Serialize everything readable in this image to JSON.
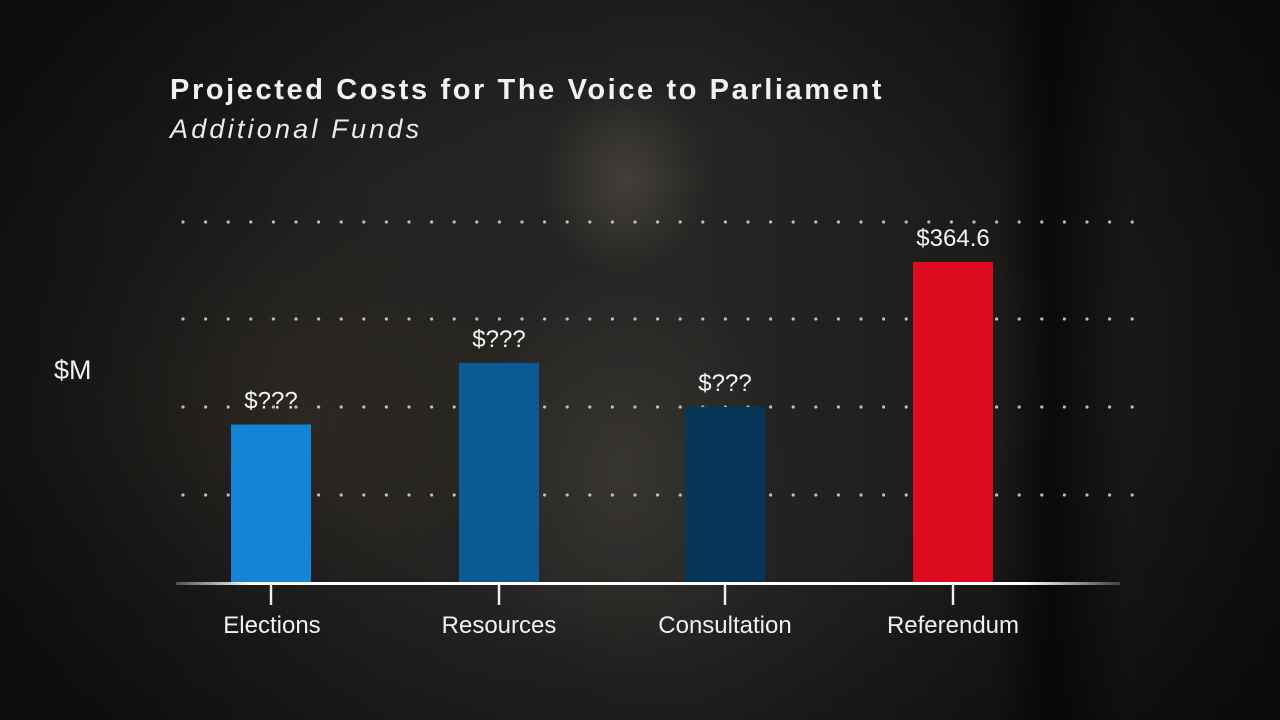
{
  "chart_data": {
    "type": "bar",
    "title": "Projected Costs for The Voice to Parliament",
    "subtitle": "Additional Funds",
    "ylabel": "$M",
    "xlabel": "",
    "categories": [
      "Elections",
      "Resources",
      "Consultation",
      "Referendum"
    ],
    "values": [
      180,
      250,
      200,
      364.6
    ],
    "value_labels": [
      "$???",
      "$???",
      "$???",
      "$364.6"
    ],
    "colors": [
      "#1583d6",
      "#0c5a92",
      "#06365a",
      "#dc0a1e"
    ],
    "ylim": [
      0,
      410
    ],
    "gridlines": [
      100,
      200,
      300,
      410
    ],
    "grid": true,
    "grid_style": "dotted",
    "legend": "none"
  }
}
